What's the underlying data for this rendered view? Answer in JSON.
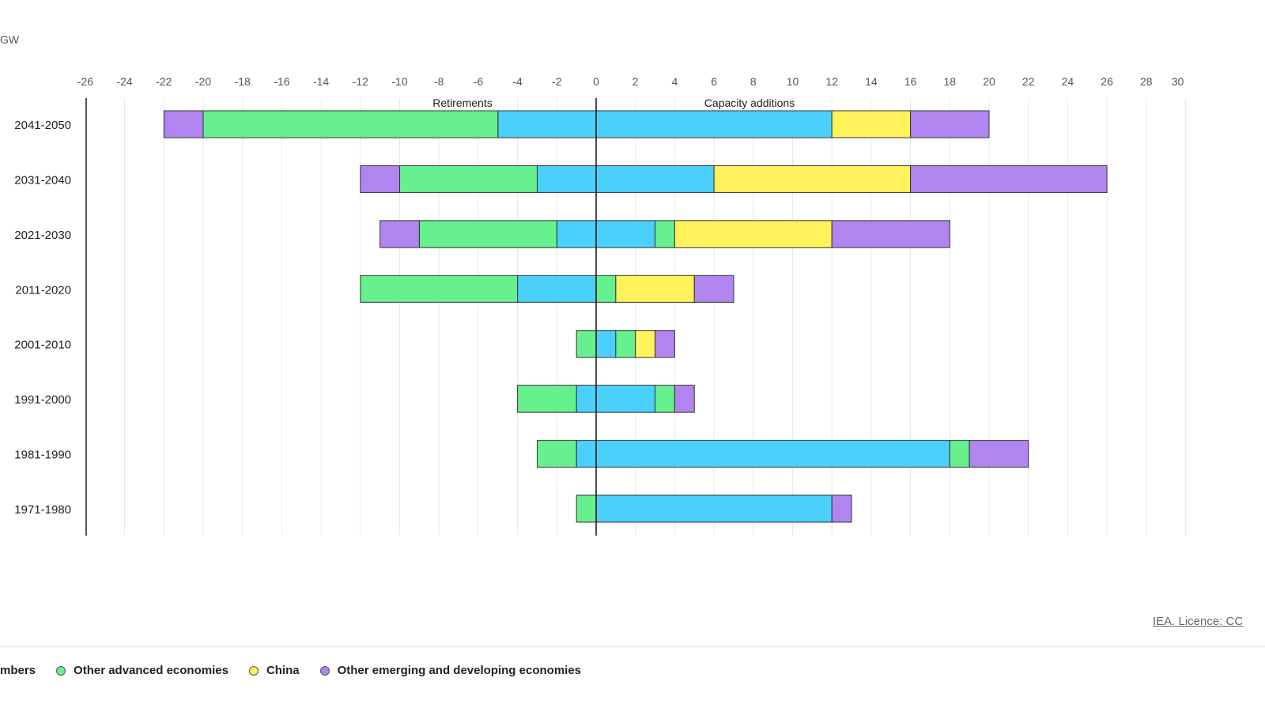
{
  "chart_data": {
    "type": "bar",
    "orientation": "horizontal-stacked-diverging",
    "unit_label": "GW",
    "xlim": [
      -26,
      30
    ],
    "x_ticks": [
      -26,
      -24,
      -22,
      -20,
      -18,
      -16,
      -14,
      -12,
      -10,
      -8,
      -6,
      -4,
      -2,
      0,
      2,
      4,
      6,
      8,
      10,
      12,
      14,
      16,
      18,
      20,
      22,
      24,
      26,
      28,
      30
    ],
    "grid": true,
    "annotations": {
      "left": "Retirements",
      "right": "Capacity additions"
    },
    "categories": [
      "2041-2050",
      "2031-2040",
      "2021-2030",
      "2011-2020",
      "2001-2010",
      "1991-2000",
      "1981-1990",
      "1971-1980"
    ],
    "series": [
      {
        "name": "mbers",
        "color": "#4bd0fb",
        "retirements": [
          -5,
          -3,
          -2,
          -4,
          0,
          -1,
          -1,
          0
        ],
        "additions": [
          12,
          6,
          3,
          0,
          1,
          3,
          18,
          12
        ]
      },
      {
        "name": "Other advanced economies",
        "color": "#66f08e",
        "retirements": [
          -15,
          -7,
          -7,
          -8,
          -1,
          -3,
          -2,
          -1
        ],
        "additions": [
          0,
          0,
          1,
          1,
          1,
          1,
          1,
          0
        ]
      },
      {
        "name": "China",
        "color": "#fff25a",
        "retirements": [
          0,
          0,
          0,
          0,
          0,
          0,
          0,
          0
        ],
        "additions": [
          4,
          10,
          8,
          4,
          1,
          0,
          0,
          0
        ]
      },
      {
        "name": "Other emerging and developing economies",
        "color": "#b085f0",
        "retirements": [
          -2,
          -2,
          -2,
          0,
          0,
          0,
          0,
          0
        ],
        "additions": [
          4,
          10,
          6,
          2,
          1,
          1,
          3,
          1
        ]
      }
    ],
    "legend_position": "bottom"
  },
  "credit": "IEA. Licence: CC"
}
